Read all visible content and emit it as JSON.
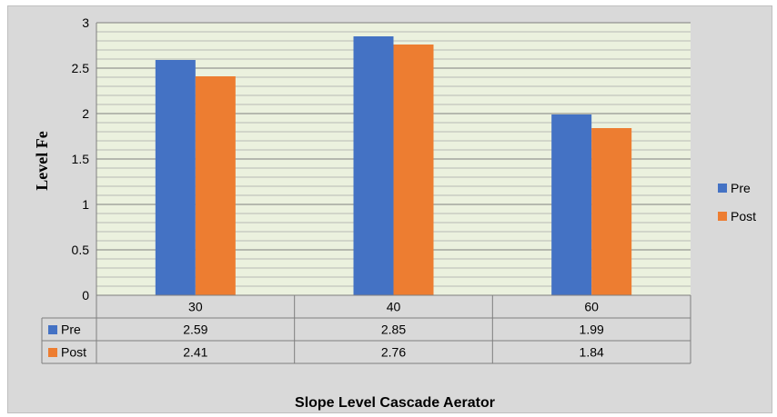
{
  "chart_data": {
    "type": "bar",
    "categories": [
      "30",
      "40",
      "60"
    ],
    "series": [
      {
        "name": "Pre",
        "values": [
          2.59,
          2.85,
          1.99
        ],
        "color": "#4472c4"
      },
      {
        "name": "Post",
        "values": [
          2.41,
          2.76,
          1.84
        ],
        "color": "#ed7d31"
      }
    ],
    "ylabel": "Level Fe",
    "xlabel": "Slope Level Cascade Aerator",
    "ylim": [
      0,
      3
    ],
    "yticks": [
      "0",
      "0.5",
      "1",
      "1.5",
      "2",
      "2.5",
      "3"
    ],
    "data_table": {
      "rows": [
        {
          "label": "Pre",
          "cells": [
            "2.59",
            "2.85",
            "1.99"
          ]
        },
        {
          "label": "Post",
          "cells": [
            "2.41",
            "2.76",
            "1.84"
          ]
        }
      ]
    },
    "legend_position": "right",
    "grid": true,
    "plot_background": "#ebf1de",
    "chart_background": "#d9d9d9"
  }
}
